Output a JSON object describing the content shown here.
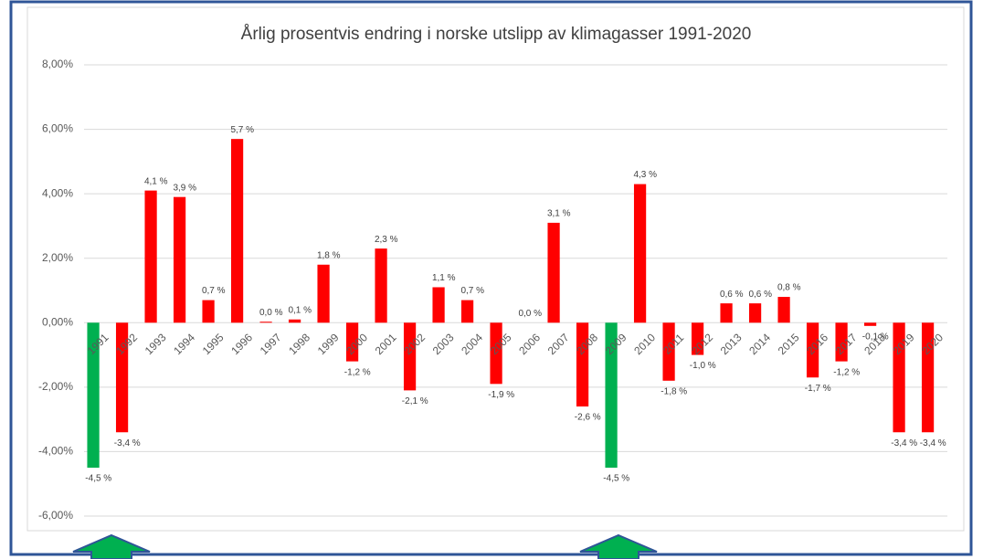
{
  "chart_data": {
    "type": "bar",
    "title": "Årlig prosentvis endring i norske utslipp av klimagasser 1991-2020",
    "categories": [
      "1991",
      "1992",
      "1993",
      "1994",
      "1995",
      "1996",
      "1997",
      "1998",
      "1999",
      "2000",
      "2001",
      "2002",
      "2003",
      "2004",
      "2005",
      "2006",
      "2007",
      "2008",
      "2009",
      "2010",
      "2011",
      "2012",
      "2013",
      "2014",
      "2015",
      "2016",
      "2017",
      "2018",
      "2019",
      "2020"
    ],
    "values": [
      -4.5,
      -3.4,
      4.1,
      3.9,
      0.7,
      5.7,
      0.03,
      0.1,
      1.8,
      -1.2,
      2.3,
      -2.1,
      1.1,
      0.7,
      -1.9,
      0.0,
      3.1,
      -2.6,
      -4.5,
      4.3,
      -1.8,
      -1.0,
      0.6,
      0.6,
      0.8,
      -1.7,
      -1.2,
      -0.1,
      -3.4,
      -3.4
    ],
    "value_labels": [
      "-4,5 %",
      "-3,4 %",
      "4,1 %",
      "3,9 %",
      "0,7 %",
      "5,7 %",
      "0,0 %",
      "0,1 %",
      "1,8 %",
      "-1,2 %",
      "2,3 %",
      "-2,1 %",
      "1,1 %",
      "0,7 %",
      "-1,9 %",
      "0,0 %",
      "3,1 %",
      "-2,6 %",
      "-4,5 %",
      "4,3 %",
      "-1,8 %",
      "-1,0 %",
      "0,6 %",
      "0,6 %",
      "0,8 %",
      "-1,7 %",
      "-1,2 %",
      "-0,1 %",
      "-3,4 %",
      "-3,4 %"
    ],
    "colors": [
      "#00b050",
      "#ff0000",
      "#ff0000",
      "#ff0000",
      "#ff0000",
      "#ff0000",
      "#ff0000",
      "#ff0000",
      "#ff0000",
      "#ff0000",
      "#ff0000",
      "#ff0000",
      "#ff0000",
      "#ff0000",
      "#ff0000",
      "#ff0000",
      "#ff0000",
      "#ff0000",
      "#00b050",
      "#ff0000",
      "#ff0000",
      "#ff0000",
      "#ff0000",
      "#ff0000",
      "#ff0000",
      "#ff0000",
      "#ff0000",
      "#ff0000",
      "#ff0000",
      "#ff0000"
    ],
    "ylim": [
      -6,
      8
    ],
    "yticks": [
      {
        "value": -6,
        "label": "-6,00%"
      },
      {
        "value": -4,
        "label": "-4,00%"
      },
      {
        "value": -2,
        "label": "-2,00%"
      },
      {
        "value": 0,
        "label": "0,00%"
      },
      {
        "value": 2,
        "label": "2,00%"
      },
      {
        "value": 4,
        "label": "4,00%"
      },
      {
        "value": 6,
        "label": "6,00%"
      },
      {
        "value": 8,
        "label": "8,00%"
      }
    ],
    "grid": true
  }
}
